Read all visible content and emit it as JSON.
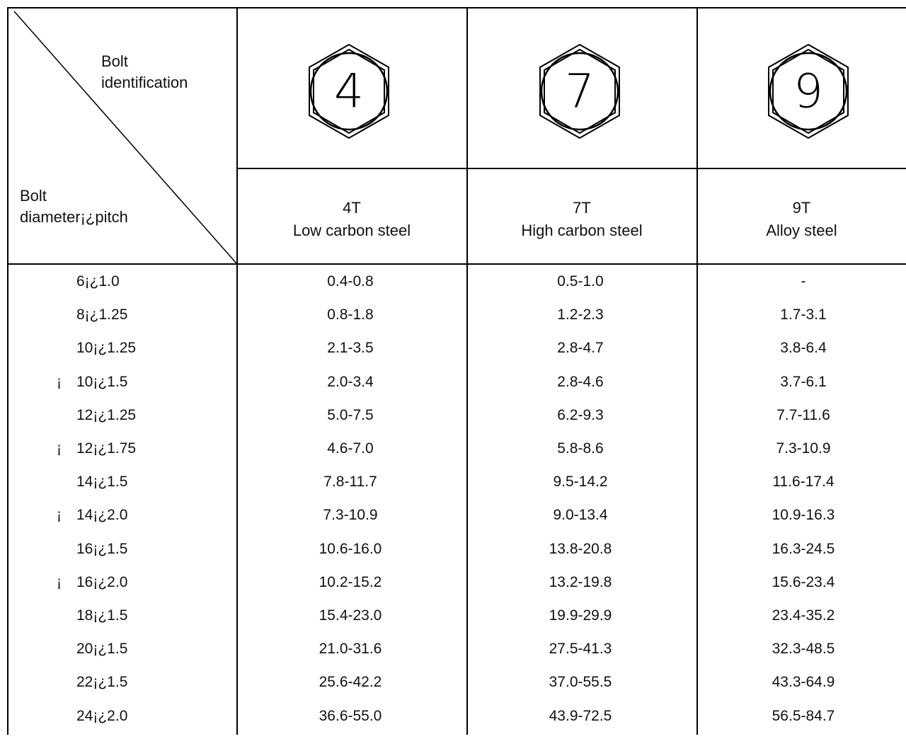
{
  "header": {
    "bolt_identification_label_1": "Bolt",
    "bolt_identification_label_2": "identification",
    "bolt_diameter_label_1": "Bolt",
    "bolt_diameter_label_2": "diameter¡¿pitch"
  },
  "grades": [
    {
      "head_mark": "4",
      "class": "4T",
      "material": "Low carbon steel"
    },
    {
      "head_mark": "7",
      "class": "7T",
      "material": "High carbon steel"
    },
    {
      "head_mark": "9",
      "class": "9T",
      "material": "Alloy steel"
    }
  ],
  "rows": [
    {
      "mark": "",
      "size": "6¡¿1.0",
      "t4": "0.4-0.8",
      "t7": "0.5-1.0",
      "t9": "-"
    },
    {
      "mark": "",
      "size": "8¡¿1.25",
      "t4": "0.8-1.8",
      "t7": "1.2-2.3",
      "t9": "1.7-3.1"
    },
    {
      "mark": "",
      "size": "10¡¿1.25",
      "t4": "2.1-3.5",
      "t7": "2.8-4.7",
      "t9": "3.8-6.4"
    },
    {
      "mark": "¡",
      "size": "10¡¿1.5",
      "t4": "2.0-3.4",
      "t7": "2.8-4.6",
      "t9": "3.7-6.1"
    },
    {
      "mark": "",
      "size": "12¡¿1.25",
      "t4": "5.0-7.5",
      "t7": "6.2-9.3",
      "t9": "7.7-11.6"
    },
    {
      "mark": "¡",
      "size": "12¡¿1.75",
      "t4": "4.6-7.0",
      "t7": "5.8-8.6",
      "t9": "7.3-10.9"
    },
    {
      "mark": "",
      "size": "14¡¿1.5",
      "t4": "7.8-11.7",
      "t7": "9.5-14.2",
      "t9": "11.6-17.4"
    },
    {
      "mark": "¡",
      "size": "14¡¿2.0",
      "t4": "7.3-10.9",
      "t7": "9.0-13.4",
      "t9": "10.9-16.3"
    },
    {
      "mark": "",
      "size": "16¡¿1.5",
      "t4": "10.6-16.0",
      "t7": "13.8-20.8",
      "t9": "16.3-24.5"
    },
    {
      "mark": "¡",
      "size": "16¡¿2.0",
      "t4": "10.2-15.2",
      "t7": "13.2-19.8",
      "t9": "15.6-23.4"
    },
    {
      "mark": "",
      "size": "18¡¿1.5",
      "t4": "15.4-23.0",
      "t7": "19.9-29.9",
      "t9": "23.4-35.2"
    },
    {
      "mark": "",
      "size": "20¡¿1.5",
      "t4": "21.0-31.6",
      "t7": "27.5-41.3",
      "t9": "32.3-48.5"
    },
    {
      "mark": "",
      "size": "22¡¿1.5",
      "t4": "25.6-42.2",
      "t7": "37.0-55.5",
      "t9": "43.3-64.9"
    },
    {
      "mark": "",
      "size": "24¡¿2.0",
      "t4": "36.6-55.0",
      "t7": "43.9-72.5",
      "t9": "56.5-84.7"
    }
  ]
}
